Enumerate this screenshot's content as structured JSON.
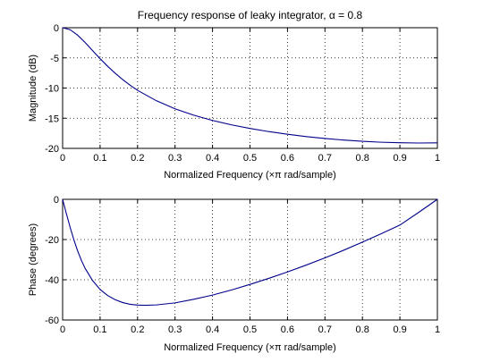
{
  "chart_data": [
    {
      "type": "line",
      "title": "Frequency response of leaky integrator, α = 0.8",
      "xlabel": "Normalized Frequency  (×π rad/sample)",
      "ylabel": "Magnitude (dB)",
      "xlim": [
        0,
        1
      ],
      "ylim": [
        -20,
        0
      ],
      "xticks": [
        "0",
        "0.1",
        "0.2",
        "0.3",
        "0.4",
        "0.5",
        "0.6",
        "0.7",
        "0.8",
        "0.9",
        "1"
      ],
      "yticks": [
        "-20",
        "-15",
        "-10",
        "-5",
        "0"
      ],
      "grid": true,
      "color": "#00008b",
      "x": [
        0,
        0.02,
        0.04,
        0.06,
        0.08,
        0.1,
        0.12,
        0.14,
        0.16,
        0.18,
        0.2,
        0.25,
        0.3,
        0.35,
        0.4,
        0.45,
        0.5,
        0.55,
        0.6,
        0.65,
        0.7,
        0.75,
        0.8,
        0.85,
        0.9,
        0.95,
        1
      ],
      "y": [
        0,
        -0.33,
        -1.23,
        -2.45,
        -3.8,
        -5.13,
        -6.38,
        -7.53,
        -8.58,
        -9.53,
        -10.38,
        -12.1,
        -13.45,
        -14.5,
        -15.37,
        -16.09,
        -16.7,
        -17.22,
        -17.66,
        -18.04,
        -18.36,
        -18.62,
        -18.83,
        -18.98,
        -19.07,
        -19.11,
        -19.08
      ]
    },
    {
      "type": "line",
      "title": "",
      "xlabel": "Normalized Frequency  (×π rad/sample)",
      "ylabel": "Phase (degrees)",
      "xlim": [
        0,
        1
      ],
      "ylim": [
        -60,
        0
      ],
      "xticks": [
        "0",
        "0.1",
        "0.2",
        "0.3",
        "0.4",
        "0.5",
        "0.6",
        "0.7",
        "0.8",
        "0.9",
        "1"
      ],
      "yticks": [
        "-60",
        "-40",
        "-20",
        "0"
      ],
      "grid": true,
      "color": "#00008b",
      "x": [
        0,
        0.01,
        0.02,
        0.03,
        0.04,
        0.05,
        0.06,
        0.08,
        0.1,
        0.12,
        0.14,
        0.16,
        0.18,
        0.2,
        0.22,
        0.25,
        0.3,
        0.35,
        0.4,
        0.45,
        0.5,
        0.55,
        0.6,
        0.65,
        0.7,
        0.75,
        0.8,
        0.85,
        0.9,
        0.95,
        1
      ],
      "y": [
        0,
        -7.1,
        -13.9,
        -20.1,
        -25.6,
        -30.3,
        -34.3,
        -40.4,
        -44.8,
        -47.8,
        -49.9,
        -51.3,
        -52.2,
        -52.6,
        -52.7,
        -52.5,
        -51.5,
        -49.7,
        -47.6,
        -45.1,
        -42.3,
        -39.3,
        -36.1,
        -32.7,
        -29.1,
        -25.3,
        -21.3,
        -17.1,
        -12.8,
        -6.5,
        0
      ]
    }
  ]
}
